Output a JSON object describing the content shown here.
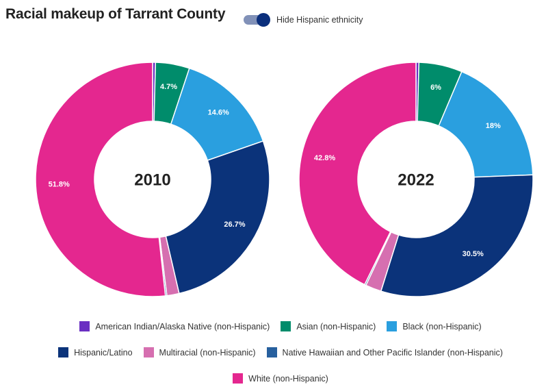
{
  "header": {
    "title": "Racial makeup of Tarrant County",
    "toggle_label": "Hide Hispanic ethnicity"
  },
  "colors": {
    "toggle_track": "#8191b8",
    "toggle_knob": "#0b2f7c"
  },
  "chart_data": {
    "type": "pie",
    "style": "donut",
    "categories": [
      "American Indian/Alaska Native (non-Hispanic)",
      "Asian (non-Hispanic)",
      "Black (non-Hispanic)",
      "Hispanic/Latino",
      "Multiracial (non-Hispanic)",
      "Native Hawaiian and Other Pacific Islander (non-Hispanic)",
      "White (non-Hispanic)"
    ],
    "colors": [
      "#6a2fc2",
      "#008c6b",
      "#2a9fdf",
      "#0b337a",
      "#d66fb0",
      "#27609e",
      "#e4278f"
    ],
    "series": [
      {
        "name": "2010",
        "values": [
          0.4,
          4.7,
          14.6,
          26.7,
          1.7,
          0.2,
          51.8
        ],
        "labels": [
          "",
          "4.7%",
          "14.6%",
          "26.7%",
          "",
          "",
          "51.8%"
        ]
      },
      {
        "name": "2022",
        "values": [
          0.4,
          6.0,
          18.0,
          30.5,
          2.2,
          0.2,
          42.8
        ],
        "labels": [
          "",
          "6%",
          "18%",
          "30.5%",
          "",
          "",
          "42.8%"
        ]
      }
    ],
    "legend_position": "bottom"
  }
}
